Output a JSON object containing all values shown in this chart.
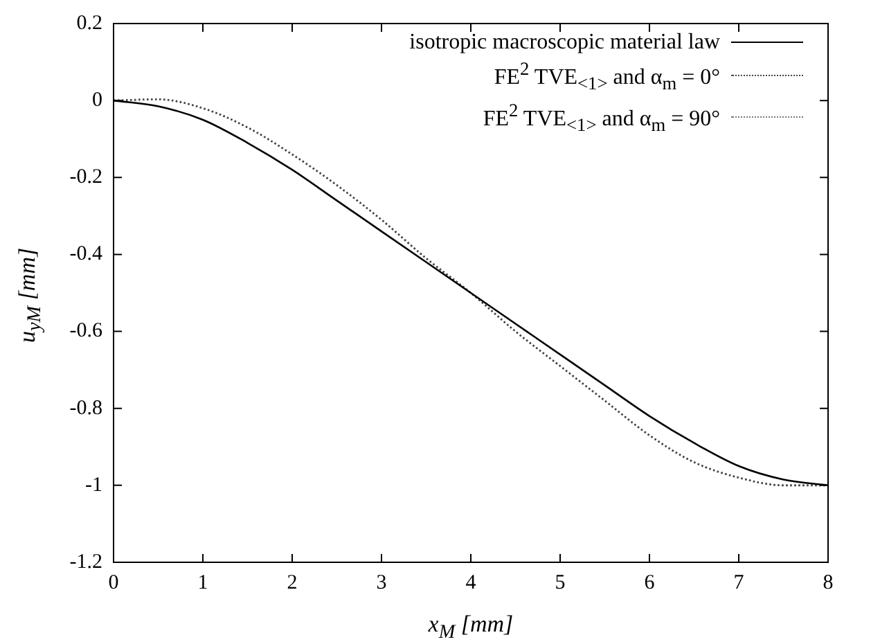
{
  "chart_data": {
    "type": "line",
    "xlabel": "x$_{M}$ [mm]",
    "ylabel": "u$_{yM}$ [mm]",
    "xlim": [
      0,
      8
    ],
    "xticks": [
      0,
      1,
      2,
      3,
      4,
      5,
      6,
      7,
      8
    ],
    "ylim": [
      -1.2,
      0.2
    ],
    "yticks": [
      -1.2,
      -1,
      -0.8,
      -0.6,
      -0.4,
      -0.2,
      0,
      0.2
    ],
    "grid": false,
    "legend": "top right",
    "marker": "none",
    "x": [
      0,
      0.5,
      1,
      1.5,
      2,
      2.5,
      3,
      3.5,
      4,
      4.5,
      5,
      5.5,
      6,
      6.5,
      7,
      7.5,
      8
    ],
    "series": [
      {
        "name": "isotropic macroscopic material law",
        "color": "#000000",
        "line_style": "solid",
        "values": [
          0,
          -0.015,
          -0.05,
          -0.11,
          -0.18,
          -0.26,
          -0.34,
          -0.42,
          -0.5,
          -0.58,
          -0.66,
          -0.74,
          -0.82,
          -0.89,
          -0.95,
          -0.985,
          -1
        ]
      },
      {
        "name": "FE$^{2}$ TVE$_{<1>}$ and α$_{m}$ = 0°",
        "color": "#444444",
        "line_style": "dotted",
        "values": [
          0,
          0.003,
          -0.02,
          -0.07,
          -0.14,
          -0.22,
          -0.31,
          -0.41,
          -0.5,
          -0.6,
          -0.69,
          -0.78,
          -0.87,
          -0.94,
          -0.98,
          -1,
          -1
        ]
      },
      {
        "name": "FE$^{2}$ TVE$_{<1>}$ and α$_{m}$ = 90°",
        "color": "#777777",
        "line_style": "dotted",
        "values": [
          0,
          0.003,
          -0.02,
          -0.07,
          -0.14,
          -0.22,
          -0.31,
          -0.41,
          -0.5,
          -0.6,
          -0.69,
          -0.78,
          -0.87,
          -0.94,
          -0.98,
          -1,
          -1
        ]
      }
    ]
  }
}
